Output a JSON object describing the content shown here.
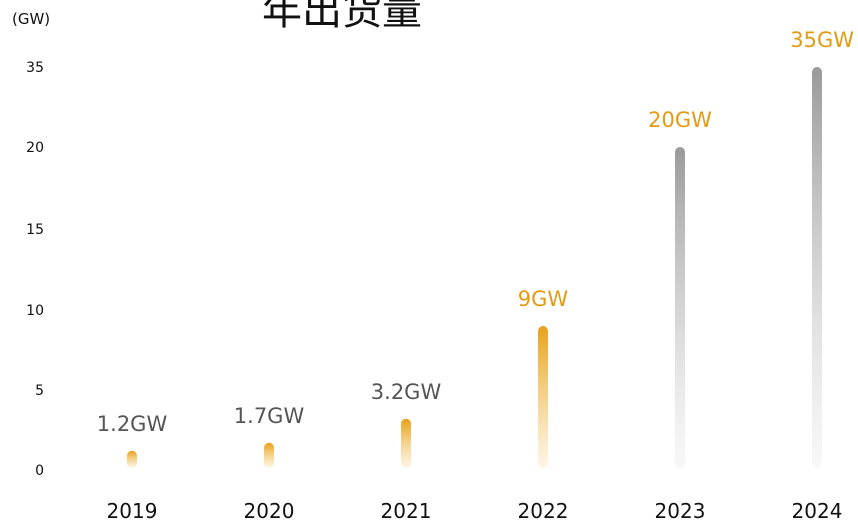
{
  "title": "年出货量",
  "chart_data": {
    "type": "bar",
    "ylabel": "(GW)",
    "categories": [
      "2019",
      "2020",
      "2021",
      "2022",
      "2023",
      "2024"
    ],
    "values": [
      1.2,
      1.7,
      3.2,
      9,
      20,
      35
    ],
    "data_labels": [
      "1.2GW",
      "1.7GW",
      "3.2GW",
      "9GW",
      "20GW",
      "35GW"
    ],
    "yticks": [
      0,
      5,
      10,
      15,
      20,
      35
    ],
    "grid": false,
    "colors": {
      "orange": "#e8a11a",
      "gray": "#9a9a9a",
      "label_gray": "#555555",
      "label_orange": "#e39b12"
    },
    "bar_styles": [
      "orange",
      "orange",
      "orange",
      "orange",
      "gray",
      "gray"
    ],
    "label_styles": [
      "label_gray",
      "label_gray",
      "label_gray",
      "label_orange",
      "label_orange",
      "label_orange"
    ]
  }
}
